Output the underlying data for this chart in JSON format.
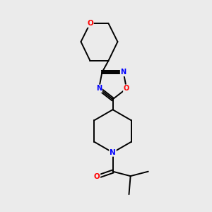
{
  "background_color": "#ebebeb",
  "bond_color": "#000000",
  "atom_colors": {
    "O": "#ff0000",
    "N": "#0000ff",
    "C": "#000000"
  },
  "figsize": [
    3.0,
    3.0
  ],
  "dpi": 100
}
